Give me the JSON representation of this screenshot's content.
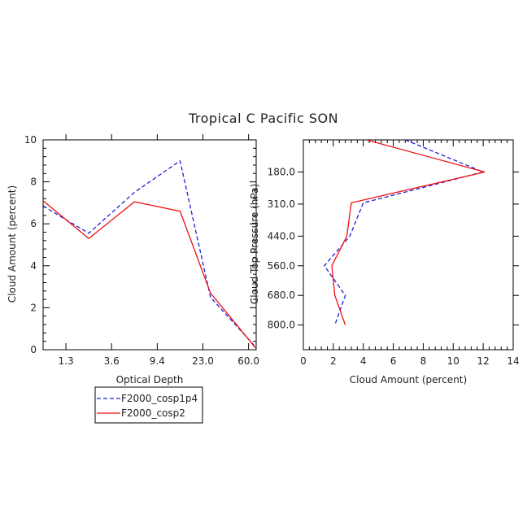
{
  "colors": {
    "blue": "#1f1fd6",
    "red": "#ee1111",
    "axis": "#000000"
  },
  "legend": {
    "placement": "below-left-panel",
    "items": [
      {
        "label": "F2000_cosp1p4",
        "color": "#1f1fd6",
        "style": "dashed"
      },
      {
        "label": "F2000_cosp2",
        "color": "#ee1111",
        "style": "solid"
      }
    ]
  },
  "chart_data": [
    {
      "id": "left",
      "type": "line",
      "title": "Tropical C Pacific SON",
      "xlabel": "Optical Depth",
      "ylabel": "Cloud Amount (percent)",
      "xlim": [
        0,
        7
      ],
      "ylim": [
        0,
        10
      ],
      "x": [
        0,
        1.5,
        3,
        4.5,
        5.5,
        7
      ],
      "x_tick_positions": [
        0.75,
        2.25,
        3.75,
        5.25,
        6.75
      ],
      "x_tick_labels": [
        "1.3",
        "3.6",
        "9.4",
        "23.0",
        "60.0"
      ],
      "y_ticks": [
        0,
        2,
        4,
        6,
        8,
        10
      ],
      "y_tick_labels": [
        "0",
        "2",
        "4",
        "6",
        "8",
        "10"
      ],
      "series": [
        {
          "name": "F2000_cosp1p4",
          "values": [
            6.85,
            5.55,
            7.5,
            9.0,
            2.5,
            0.1
          ]
        },
        {
          "name": "F2000_cosp2",
          "values": [
            7.1,
            5.3,
            7.05,
            6.6,
            2.7,
            0.05
          ]
        }
      ]
    },
    {
      "id": "right",
      "type": "line",
      "xlabel": "Cloud Amount (percent)",
      "ylabel": "Cloud Top Pressure (hPa)",
      "xlim": [
        0,
        14
      ],
      "ylim": [
        50,
        900
      ],
      "y_reversed": true,
      "x_ticks": [
        0,
        2,
        4,
        6,
        8,
        10,
        12,
        14
      ],
      "x_tick_labels": [
        "0",
        "2",
        "4",
        "6",
        "8",
        "10",
        "12",
        "14"
      ],
      "y_ticks": [
        180,
        310,
        440,
        560,
        680,
        800
      ],
      "y_tick_labels": [
        "180.0",
        "310.0",
        "440.0",
        "560.0",
        "680.0",
        "800.0"
      ],
      "series": [
        {
          "name": "F2000_cosp1p4",
          "values": [
            6.8,
            12.0,
            4.0,
            3.1,
            1.4,
            2.8,
            2.1
          ],
          "pressure": [
            50,
            180,
            305,
            440,
            560,
            680,
            800
          ]
        },
        {
          "name": "F2000_cosp2",
          "values": [
            4.2,
            12.1,
            3.2,
            2.9,
            1.9,
            2.1,
            2.8
          ],
          "pressure": [
            50,
            180,
            305,
            440,
            560,
            680,
            800
          ]
        }
      ]
    }
  ]
}
